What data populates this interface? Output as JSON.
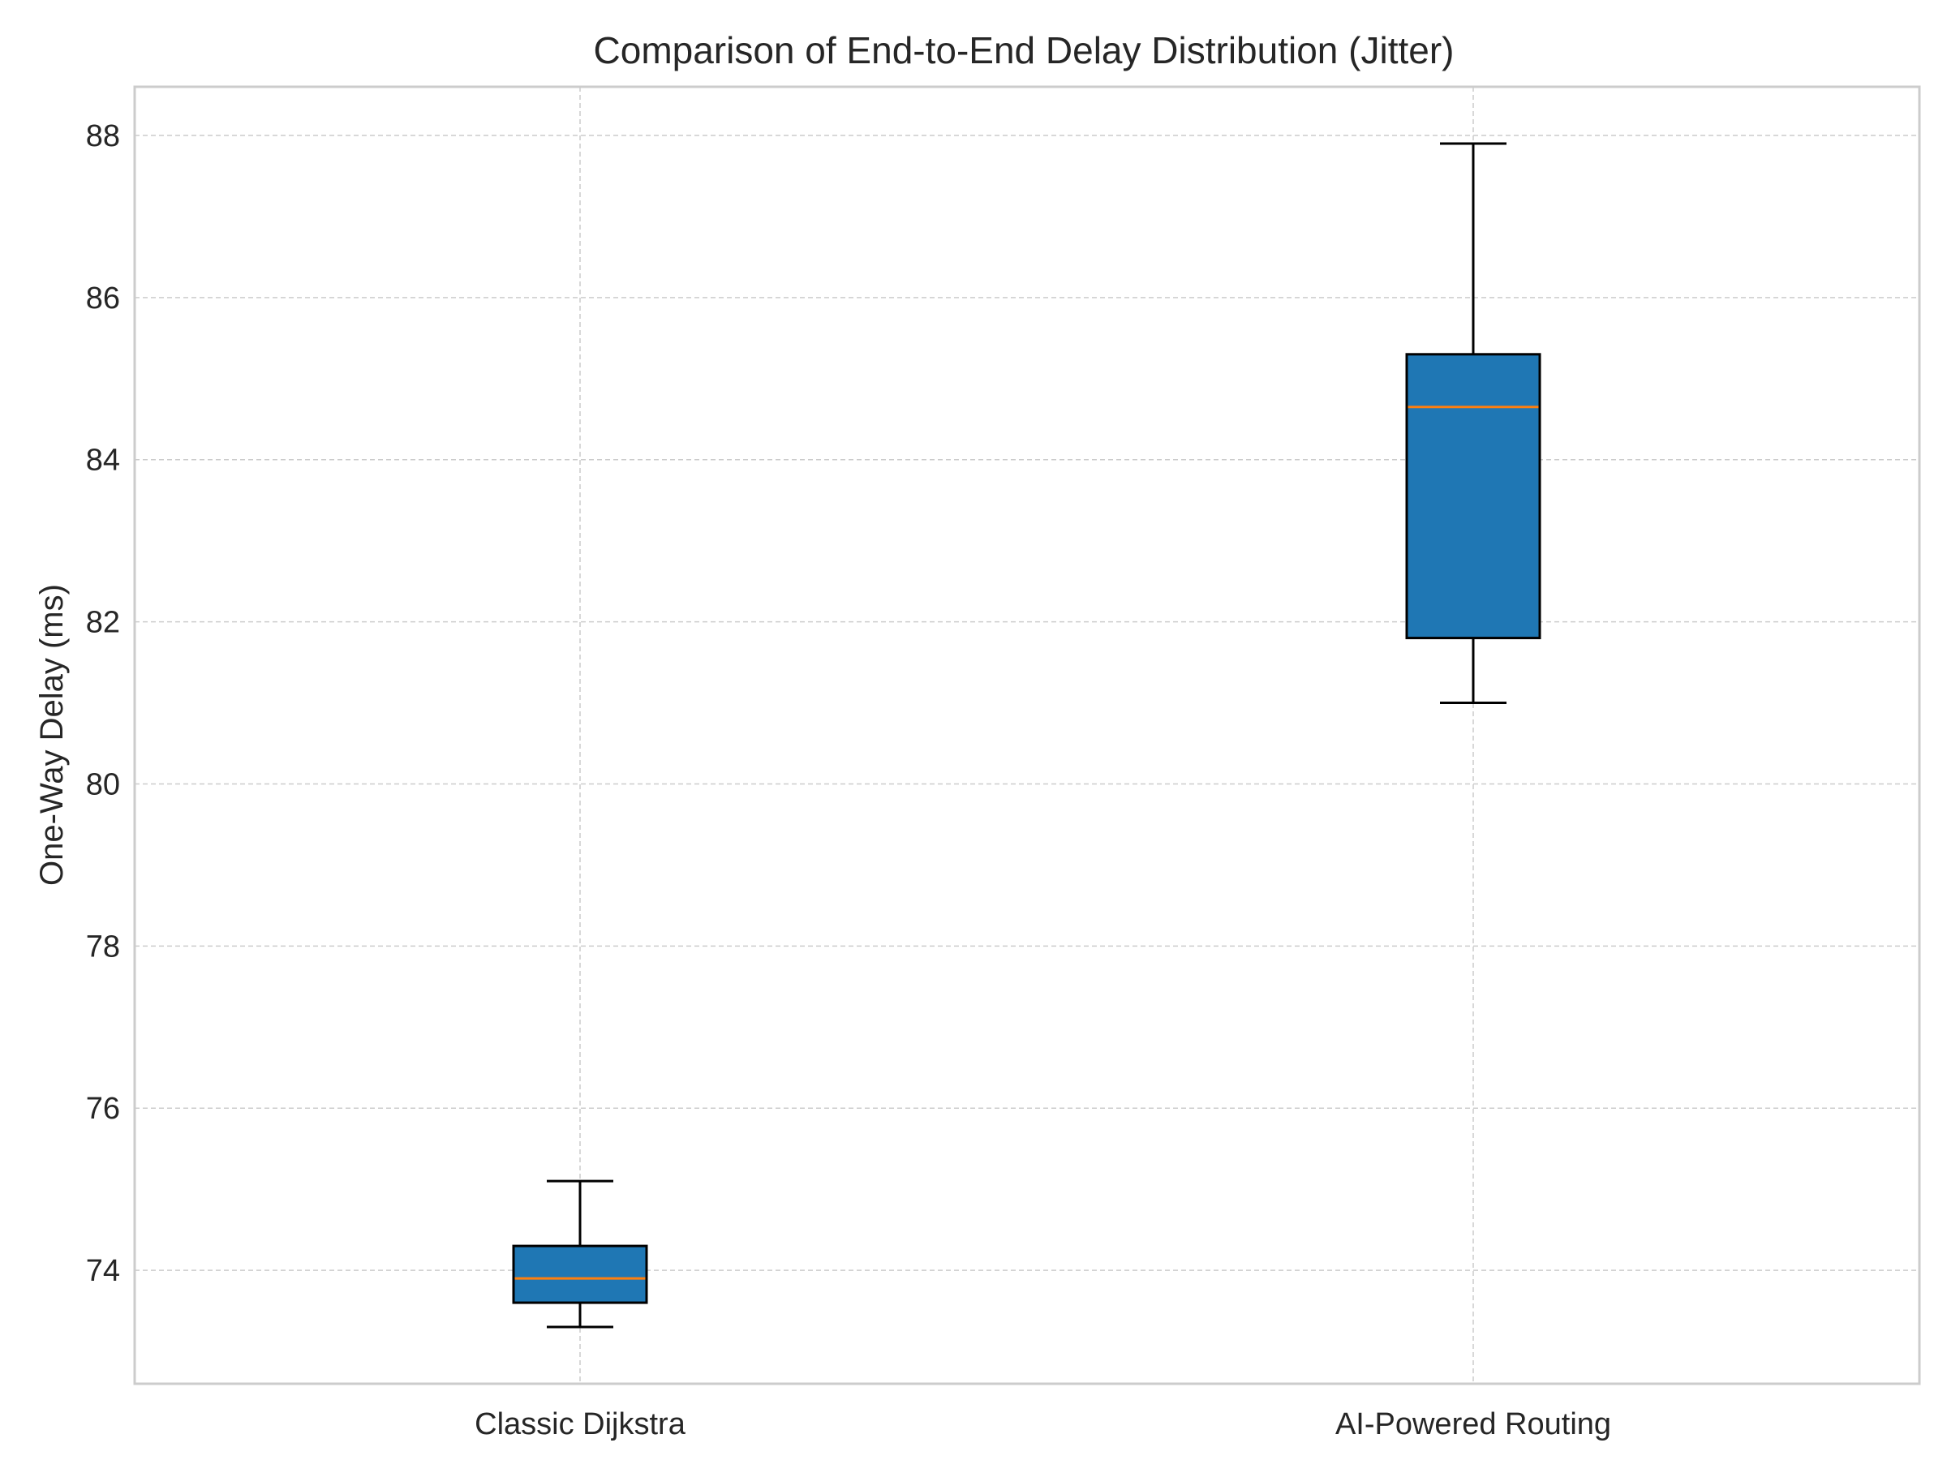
{
  "chart_data": {
    "type": "box",
    "title": "Comparison of End-to-End Delay Distribution (Jitter)",
    "xlabel": "",
    "ylabel": "One-Way Delay (ms)",
    "ylim": [
      72.6,
      88.6
    ],
    "yticks": [
      74,
      76,
      78,
      80,
      82,
      84,
      86,
      88
    ],
    "grid": true,
    "categories": [
      "Classic Dijkstra",
      "AI-Powered Routing"
    ],
    "boxes": [
      {
        "category": "Classic Dijkstra",
        "whisker_low": 73.3,
        "q1": 73.6,
        "median": 73.9,
        "q3": 74.3,
        "whisker_high": 75.1
      },
      {
        "category": "AI-Powered Routing",
        "whisker_low": 81.0,
        "q1": 81.8,
        "median": 84.65,
        "q3": 85.3,
        "whisker_high": 87.9
      }
    ],
    "colors": {
      "box_fill": "#1f77b4",
      "box_edge": "#000000",
      "median": "#ff7f0e",
      "grid": "#cccccc",
      "spine": "#cccccc",
      "text": "#262626"
    }
  }
}
